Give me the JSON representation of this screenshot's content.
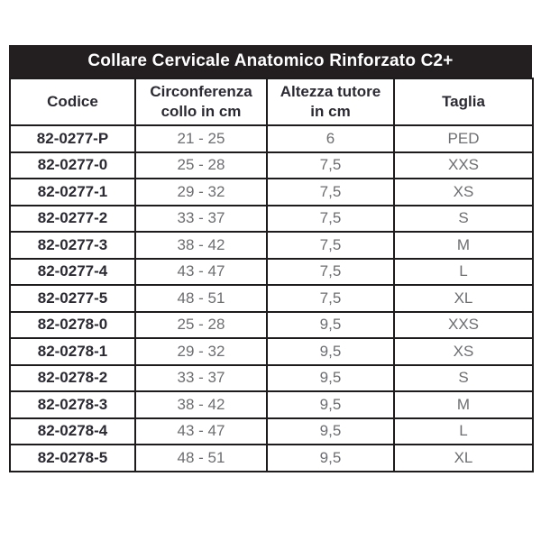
{
  "colors": {
    "title_bar_bg": "#231f20",
    "title_text": "#ffffff",
    "border": "#1d1b1c",
    "code_text": "#2b2a33",
    "value_text": "#6d6e71",
    "page_bg": "#ffffff"
  },
  "table": {
    "title": "Collare Cervicale Anatomico Rinforzato C2+",
    "columns": [
      {
        "key": "codice",
        "label": "Codice"
      },
      {
        "key": "circonferenza",
        "label": "Circonferenza\ncollo in cm"
      },
      {
        "key": "altezza",
        "label": "Altezza tutore\nin cm"
      },
      {
        "key": "taglia",
        "label": "Taglia"
      }
    ],
    "rows": [
      {
        "codice": "82-0277-P",
        "circonferenza": "21 - 25",
        "altezza": "6",
        "taglia": "PED"
      },
      {
        "codice": "82-0277-0",
        "circonferenza": "25 - 28",
        "altezza": "7,5",
        "taglia": "XXS"
      },
      {
        "codice": "82-0277-1",
        "circonferenza": "29 - 32",
        "altezza": "7,5",
        "taglia": "XS"
      },
      {
        "codice": "82-0277-2",
        "circonferenza": "33 - 37",
        "altezza": "7,5",
        "taglia": "S"
      },
      {
        "codice": "82-0277-3",
        "circonferenza": "38 - 42",
        "altezza": "7,5",
        "taglia": "M"
      },
      {
        "codice": "82-0277-4",
        "circonferenza": "43 - 47",
        "altezza": "7,5",
        "taglia": "L"
      },
      {
        "codice": "82-0277-5",
        "circonferenza": "48 - 51",
        "altezza": "7,5",
        "taglia": "XL"
      },
      {
        "codice": "82-0278-0",
        "circonferenza": "25 - 28",
        "altezza": "9,5",
        "taglia": "XXS"
      },
      {
        "codice": "82-0278-1",
        "circonferenza": "29 - 32",
        "altezza": "9,5",
        "taglia": "XS"
      },
      {
        "codice": "82-0278-2",
        "circonferenza": "33 - 37",
        "altezza": "9,5",
        "taglia": "S"
      },
      {
        "codice": "82-0278-3",
        "circonferenza": "38 - 42",
        "altezza": "9,5",
        "taglia": "M"
      },
      {
        "codice": "82-0278-4",
        "circonferenza": "43 - 47",
        "altezza": "9,5",
        "taglia": "L"
      },
      {
        "codice": "82-0278-5",
        "circonferenza": "48 - 51",
        "altezza": "9,5",
        "taglia": "XL"
      }
    ]
  }
}
